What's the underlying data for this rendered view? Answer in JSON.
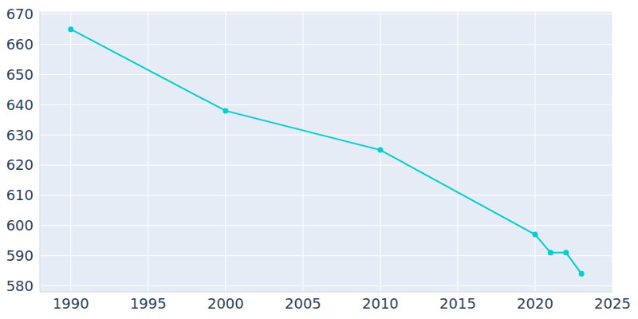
{
  "chart_data": {
    "type": "line",
    "x": [
      1990,
      2000,
      2010,
      2020,
      2021,
      2022,
      2023
    ],
    "values": [
      665,
      638,
      625,
      597,
      591,
      591,
      584
    ],
    "color": "#00CED1",
    "marker": "circle",
    "xlim": [
      1988,
      2025
    ],
    "xticks": [
      1990,
      1995,
      2000,
      2005,
      2010,
      2015,
      2020,
      2025
    ],
    "ylim": [
      578,
      671
    ],
    "yticks": [
      580,
      590,
      600,
      610,
      620,
      630,
      640,
      650,
      660,
      670
    ],
    "grid": true
  }
}
